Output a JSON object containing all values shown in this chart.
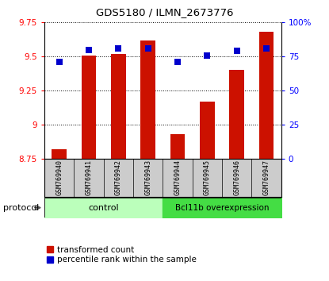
{
  "title": "GDS5180 / ILMN_2673776",
  "samples": [
    "GSM769940",
    "GSM769941",
    "GSM769942",
    "GSM769943",
    "GSM769944",
    "GSM769945",
    "GSM769946",
    "GSM769947"
  ],
  "transformed_counts": [
    8.82,
    9.51,
    9.52,
    9.62,
    8.93,
    9.17,
    9.4,
    9.68
  ],
  "percentile_ranks": [
    71,
    80,
    81,
    81,
    71,
    76,
    79,
    81
  ],
  "group_labels": [
    "control",
    "control",
    "control",
    "control",
    "Bcl11b overexpression",
    "Bcl11b overexpression",
    "Bcl11b overexpression",
    "Bcl11b overexpression"
  ],
  "group_colors": {
    "control": "#bbffbb",
    "Bcl11b overexpression": "#44dd44"
  },
  "bar_color": "#cc1100",
  "dot_color": "#0000cc",
  "ylim_left": [
    8.75,
    9.75
  ],
  "ylim_right": [
    0,
    100
  ],
  "yticks_left": [
    8.75,
    9.0,
    9.25,
    9.5,
    9.75
  ],
  "ytick_labels_left": [
    "8.75",
    "9",
    "9.25",
    "9.5",
    "9.75"
  ],
  "yticks_right": [
    0,
    25,
    50,
    75,
    100
  ],
  "ytick_labels_right": [
    "0",
    "25",
    "50",
    "75",
    "100%"
  ],
  "bar_width": 0.5,
  "protocol_label": "protocol",
  "legend_bar_label": "transformed count",
  "legend_dot_label": "percentile rank within the sample",
  "bar_bottom": 8.75,
  "dot_size": 35,
  "tick_label_bg": "#cccccc",
  "tick_label_divider": "#aaaaaa"
}
